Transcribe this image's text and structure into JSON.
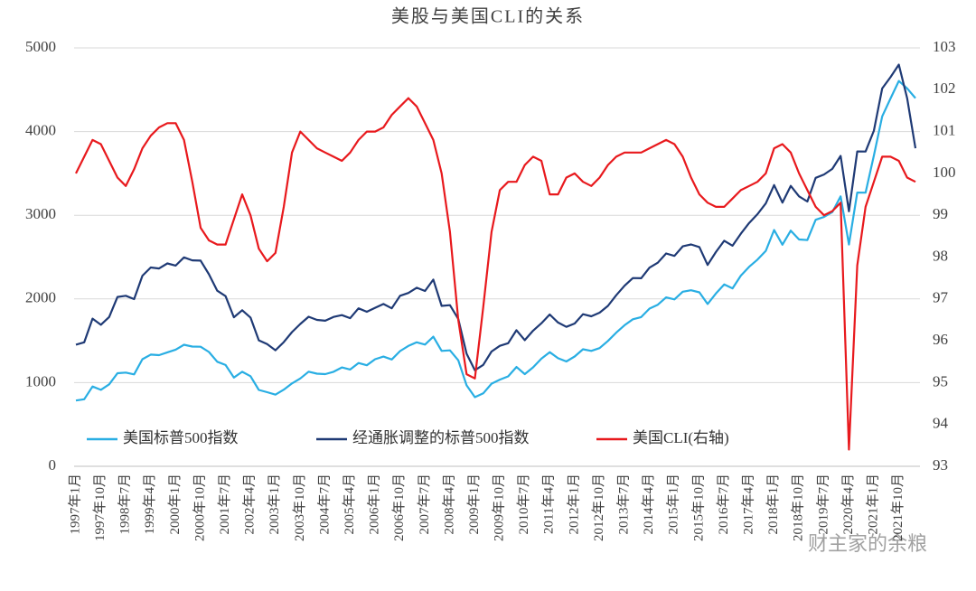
{
  "chart_data": {
    "type": "line",
    "title": "美股与美国CLI的关系",
    "watermark": "财主家的余粮",
    "categories": [
      "1997年1月",
      null,
      null,
      "1997年10月",
      null,
      null,
      "1998年7月",
      null,
      null,
      "1999年4月",
      null,
      null,
      "2000年1月",
      null,
      null,
      "2000年10月",
      null,
      null,
      "2001年7月",
      null,
      null,
      "2002年4月",
      null,
      null,
      "2003年1月",
      null,
      null,
      "2003年10月",
      null,
      null,
      "2004年7月",
      null,
      null,
      "2005年4月",
      null,
      null,
      "2006年1月",
      null,
      null,
      "2006年10月",
      null,
      null,
      "2007年7月",
      null,
      null,
      "2008年4月",
      null,
      null,
      "2009年1月",
      null,
      null,
      "2009年10月",
      null,
      null,
      "2010年7月",
      null,
      null,
      "2011年4月",
      null,
      null,
      "2012年1月",
      null,
      null,
      "2012年10月",
      null,
      null,
      "2013年7月",
      null,
      null,
      "2014年4月",
      null,
      null,
      "2015年1月",
      null,
      null,
      "2015年10月",
      null,
      null,
      "2016年7月",
      null,
      null,
      "2017年4月",
      null,
      null,
      "2018年1月",
      null,
      null,
      "2018年10月",
      null,
      null,
      "2019年7月",
      null,
      null,
      "2020年4月",
      null,
      null,
      "2021年1月",
      null,
      null,
      "2021年10月",
      null,
      null
    ],
    "ylim": [
      0,
      5000
    ],
    "yticks": [
      0,
      1000,
      2000,
      3000,
      4000,
      5000
    ],
    "y2lim": [
      93,
      103
    ],
    "y2ticks": [
      93,
      94,
      95,
      96,
      97,
      98,
      99,
      100,
      101,
      102,
      103
    ],
    "grid": true,
    "legend": "bottom-left",
    "series": [
      {
        "name": "美国标普500指数",
        "color": "#29aee3",
        "values": [
          786,
          801,
          954,
          914,
          980,
          1112,
          1120,
          1098,
          1280,
          1335,
          1328,
          1362,
          1394,
          1452,
          1431,
          1429,
          1366,
          1249,
          1211,
          1060,
          1130,
          1077,
          912,
          885,
          856,
          916,
          990,
          1050,
          1131,
          1107,
          1101,
          1130,
          1181,
          1157,
          1234,
          1207,
          1280,
          1311,
          1276,
          1377,
          1438,
          1482,
          1455,
          1549,
          1379,
          1385,
          1267,
          968,
          826,
          872,
          987,
          1036,
          1074,
          1187,
          1101,
          1183,
          1286,
          1364,
          1292,
          1253,
          1312,
          1398,
          1379,
          1412,
          1498,
          1597,
          1686,
          1757,
          1783,
          1884,
          1931,
          2018,
          1995,
          2086,
          2104,
          2079,
          1940,
          2065,
          2174,
          2126,
          2279,
          2384,
          2470,
          2575,
          2824,
          2648,
          2816,
          2711,
          2704,
          2946,
          2980,
          3038,
          3226,
          2650,
          3271,
          3270,
          3714,
          4181,
          4395,
          4605,
          4516,
          4400
        ]
      },
      {
        "name": "经通胀调整的标普500指数",
        "color": "#1f3a75",
        "values": [
          1454,
          1482,
          1765,
          1691,
          1784,
          2024,
          2038,
          1998,
          2278,
          2376,
          2364,
          2424,
          2398,
          2497,
          2461,
          2458,
          2295,
          2098,
          2034,
          1781,
          1865,
          1777,
          1505,
          1460,
          1387,
          1484,
          1604,
          1701,
          1787,
          1749,
          1740,
          1785,
          1807,
          1770,
          1888,
          1847,
          1894,
          1940,
          1888,
          2038,
          2071,
          2134,
          2095,
          2231,
          1917,
          1925,
          1761,
          1346,
          1148,
          1212,
          1372,
          1440,
          1471,
          1626,
          1508,
          1621,
          1710,
          1814,
          1718,
          1666,
          1706,
          1817,
          1793,
          1836,
          1917,
          2044,
          2158,
          2249,
          2247,
          2374,
          2433,
          2543,
          2514,
          2628,
          2651,
          2620,
          2406,
          2561,
          2696,
          2636,
          2780,
          2908,
          3013,
          3142,
          3361,
          3151,
          3351,
          3226,
          3164,
          3447,
          3487,
          3554,
          3710,
          3048,
          3762,
          3761,
          4011,
          4515,
          4650,
          4800,
          4400,
          3800
        ]
      },
      {
        "name": "美国CLI(右轴)",
        "color": "#e8191d",
        "axis": "y2",
        "values": [
          100.0,
          100.4,
          100.8,
          100.7,
          100.3,
          99.9,
          99.7,
          100.1,
          100.6,
          100.9,
          101.1,
          101.2,
          101.2,
          100.8,
          99.8,
          98.7,
          98.4,
          98.3,
          98.3,
          98.9,
          99.5,
          99.0,
          98.2,
          97.9,
          98.1,
          99.2,
          100.5,
          101.0,
          100.8,
          100.6,
          100.5,
          100.4,
          100.3,
          100.5,
          100.8,
          101.0,
          101.0,
          101.1,
          101.4,
          101.6,
          101.8,
          101.6,
          101.2,
          100.8,
          100.0,
          98.6,
          96.5,
          95.2,
          95.1,
          96.8,
          98.6,
          99.6,
          99.8,
          99.8,
          100.2,
          100.4,
          100.3,
          99.5,
          99.5,
          99.9,
          100.0,
          99.8,
          99.7,
          99.9,
          100.2,
          100.4,
          100.5,
          100.5,
          100.5,
          100.6,
          100.7,
          100.8,
          100.7,
          100.4,
          99.9,
          99.5,
          99.3,
          99.2,
          99.2,
          99.4,
          99.6,
          99.7,
          99.8,
          100.0,
          100.6,
          100.7,
          100.5,
          100.0,
          99.6,
          99.2,
          99.0,
          99.1,
          99.3,
          93.4,
          97.8,
          99.2,
          99.8,
          100.4,
          100.4,
          100.3,
          99.9,
          99.8
        ]
      }
    ]
  }
}
